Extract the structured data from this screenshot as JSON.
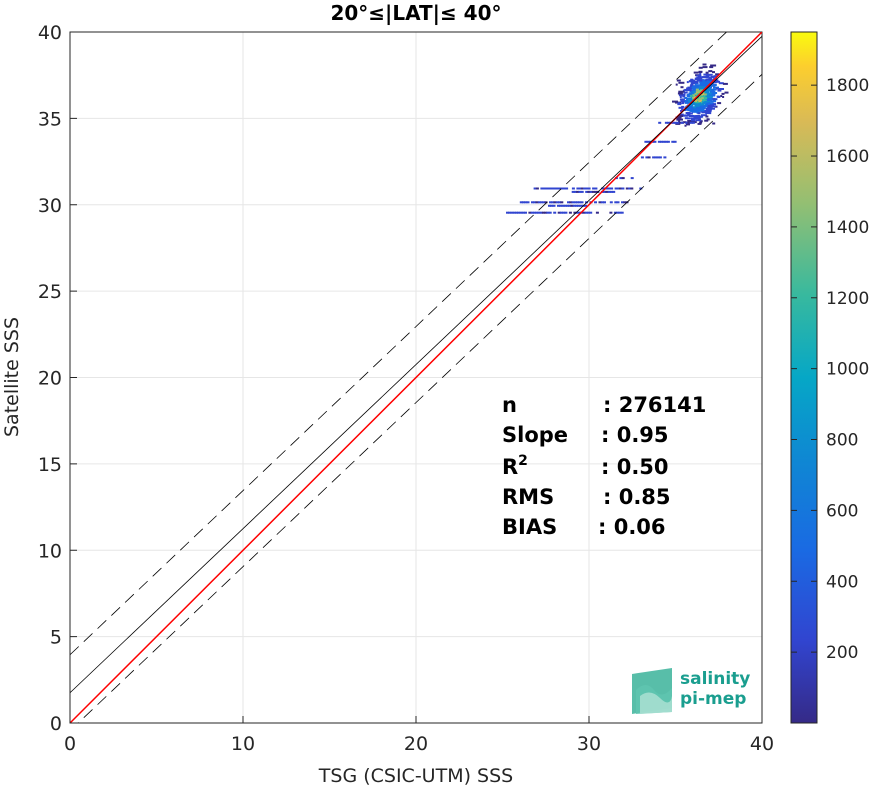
{
  "chart_data": {
    "type": "heatmap",
    "title": "20°≤|LAT|≤ 40°",
    "xlabel": "TSG (CSIC-UTM) SSS",
    "ylabel": "Satellite SSS",
    "xlim": [
      0,
      40
    ],
    "ylim": [
      0,
      40
    ],
    "x_ticks": [
      "0",
      "10",
      "20",
      "30",
      "40"
    ],
    "y_ticks": [
      "0",
      "5",
      "10",
      "15",
      "20",
      "25",
      "30",
      "35",
      "40"
    ],
    "grid": true,
    "colorbar": {
      "range": [
        0,
        1950
      ],
      "ticks": [
        "200",
        "400",
        "600",
        "800",
        "1000",
        "1200",
        "1400",
        "1600",
        "1800"
      ],
      "colormap": "parula"
    },
    "lines": [
      {
        "role": "one-to-one",
        "color": "#ff0000",
        "x": [
          0,
          40
        ],
        "y": [
          0,
          40
        ]
      },
      {
        "role": "regression-fit",
        "color": "#000000",
        "x": [
          0,
          40
        ],
        "y": [
          1.75,
          39.75
        ]
      },
      {
        "role": "fit-plus-2-std",
        "color": "#000000",
        "dash": true,
        "x": [
          0,
          40
        ],
        "y": [
          3.95,
          41.95
        ]
      },
      {
        "role": "fit-minus-2-std",
        "color": "#000000",
        "dash": true,
        "x": [
          0,
          40
        ],
        "y": [
          -0.45,
          37.55
        ]
      }
    ],
    "density_core": {
      "x_center": 36.3,
      "y_center": 36.3,
      "peak_count": 1950
    },
    "stats": [
      {
        "label": "n",
        "value": ": 276141"
      },
      {
        "label": "Slope",
        "value": ": 0.95"
      },
      {
        "label": "R",
        "sup": "2",
        "value": ": 0.50"
      },
      {
        "label": "RMS",
        "value": ": 0.85"
      },
      {
        "label": "BIAS",
        "value": ": 0.06"
      }
    ],
    "logo": {
      "line1": "salinity",
      "line2": "pi-mep"
    }
  }
}
